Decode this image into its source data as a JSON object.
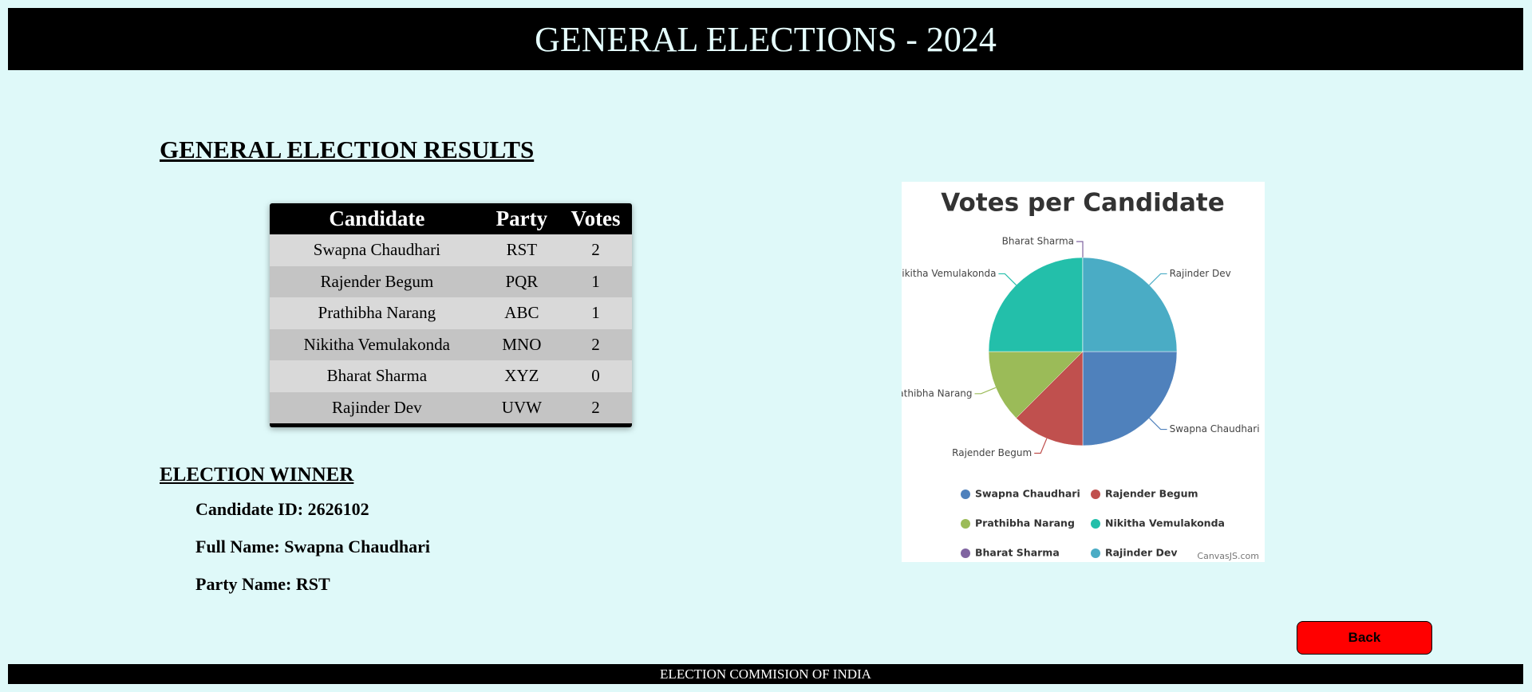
{
  "header": {
    "title": "GENERAL ELECTIONS - 2024"
  },
  "results": {
    "title": "GENERAL ELECTION RESULTS"
  },
  "table": {
    "columns": [
      "Candidate",
      "Party",
      "Votes"
    ],
    "rows": [
      [
        "Swapna Chaudhari",
        "RST",
        "2"
      ],
      [
        "Rajender Begum",
        "PQR",
        "1"
      ],
      [
        "Prathibha Narang",
        "ABC",
        "1"
      ],
      [
        "Nikitha Vemulakonda",
        "MNO",
        "2"
      ],
      [
        "Bharat Sharma",
        "XYZ",
        "0"
      ],
      [
        "Rajinder Dev",
        "UVW",
        "2"
      ]
    ]
  },
  "winner": {
    "title": "ELECTION WINNER",
    "lines": [
      "Candidate ID: 2626102",
      "Full Name: Swapna Chaudhari",
      "Party Name: RST"
    ]
  },
  "chart_data": {
    "type": "pie",
    "title": "Votes per Candidate",
    "categories": [
      "Swapna Chaudhari",
      "Rajender Begum",
      "Prathibha Narang",
      "Nikitha Vemulakonda",
      "Bharat Sharma",
      "Rajinder Dev"
    ],
    "values": [
      2,
      1,
      1,
      2,
      0,
      2
    ],
    "colors": [
      "#4f81bc",
      "#c0504e",
      "#9bbb58",
      "#23bfaa",
      "#8064a1",
      "#4aacc5"
    ],
    "credit": "CanvasJS.com"
  },
  "back_button": {
    "label": "Back"
  },
  "footer": {
    "text": "ELECTION COMMISION OF INDIA"
  }
}
